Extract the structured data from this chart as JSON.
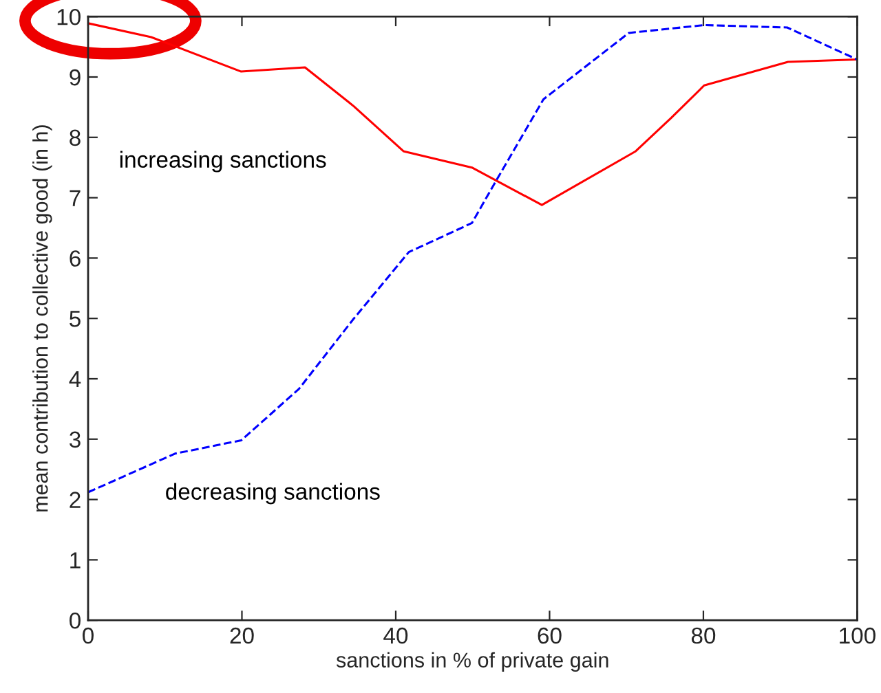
{
  "chart_data": {
    "type": "line",
    "xlabel": "sanctions in % of private gain",
    "ylabel": "mean contribution to collective good (in h)",
    "xlim": [
      0,
      100
    ],
    "ylim": [
      0,
      10
    ],
    "xticks": [
      0,
      20,
      40,
      60,
      80,
      100
    ],
    "yticks": [
      0,
      1,
      2,
      3,
      4,
      5,
      6,
      7,
      8,
      9,
      10
    ],
    "grid": false,
    "legend": false,
    "marker": "none",
    "series": [
      {
        "name": "increasing sanctions",
        "color": "#ff0000",
        "line_style": "solid",
        "x": [
          0,
          8.2,
          19.9,
          28.2,
          34.5,
          41,
          49.9,
          59,
          71.2,
          75.8,
          80.1,
          91,
          100
        ],
        "values": [
          9.89,
          9.66,
          9.09,
          9.16,
          8.52,
          7.77,
          7.5,
          6.88,
          7.77,
          8.32,
          8.86,
          9.25,
          9.29
        ]
      },
      {
        "name": "decreasing sanctions",
        "color": "#0000ff",
        "line_style": "dashed",
        "x": [
          0,
          11.3,
          19.9,
          27.4,
          34.5,
          41.7,
          49.9,
          53,
          59.2,
          70.3,
          80.1,
          90.9,
          100
        ],
        "values": [
          2.12,
          2.76,
          2.98,
          3.83,
          4.99,
          6.1,
          6.58,
          7.27,
          8.63,
          9.73,
          9.86,
          9.82,
          9.29
        ]
      }
    ]
  }
}
